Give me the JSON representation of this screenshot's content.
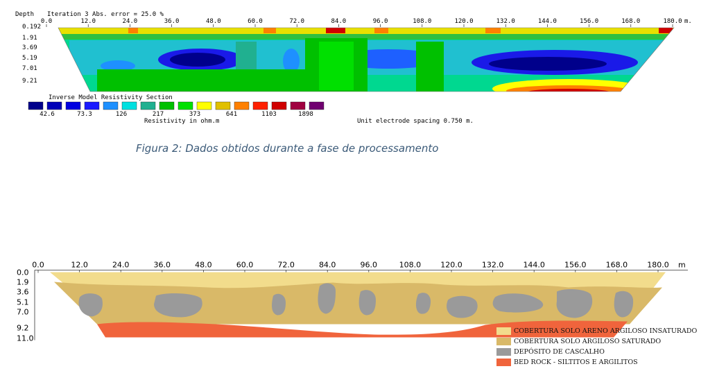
{
  "top": {
    "depth_label": "Depth",
    "iteration_text": "Iteration 3 Abs. error = 25.0 %",
    "units": "m.",
    "x_ticks": [
      "0.0",
      "12.0",
      "24.0",
      "36.0",
      "48.0",
      "60.0",
      "72.0",
      "84.0",
      "96.0",
      "108.0",
      "120.0",
      "132.0",
      "144.0",
      "156.0",
      "168.0",
      "180.0"
    ],
    "depth_ticks": [
      "0.192",
      "1.91",
      "3.69",
      "5.19",
      "7.01",
      "9.21"
    ],
    "section_title": "Inverse Model Resistivity Section",
    "legend_colors": [
      "#00008b",
      "#0000b8",
      "#0000e0",
      "#1a1aff",
      "#1e90ff",
      "#00e0e0",
      "#20b090",
      "#00c000",
      "#00e000",
      "#ffff00",
      "#e0c000",
      "#ff8000",
      "#ff2000",
      "#d00000",
      "#a00040",
      "#700070"
    ],
    "legend_values": [
      "42.6",
      "73.3",
      "126",
      "217",
      "373",
      "641",
      "1103",
      "1898"
    ],
    "resistivity_label": "Resistivity in ohm.m",
    "electrode_spacing": "Unit electrode spacing 0.750 m."
  },
  "caption": "Figura 2: Dados obtidos durante a fase de processamento",
  "bottom": {
    "units": "m",
    "x_ticks": [
      "0.0",
      "12.0",
      "24.0",
      "36.0",
      "48.0",
      "60.0",
      "72.0",
      "84.0",
      "96.0",
      "108.0",
      "120.0",
      "132.0",
      "144.0",
      "156.0",
      "168.0",
      "180.0"
    ],
    "depth_ticks": [
      "0.0",
      "1.9",
      "3.6",
      "5.1",
      "7.0",
      "9.2",
      "11.0"
    ],
    "legend": [
      {
        "label": "COBERTURA SOLO ARENO ARGILOSO INSATURADO",
        "color": "#f2dc8c"
      },
      {
        "label": "COBERTURA SOLO ARGILOSO SATURADO",
        "color": "#d9b968"
      },
      {
        "label": "DEPÓSITO DE CASCALHO",
        "color": "#9a9a9a"
      },
      {
        "label": "BED ROCK - SILTITOS E ARGILITOS",
        "color": "#f0643c"
      }
    ]
  }
}
